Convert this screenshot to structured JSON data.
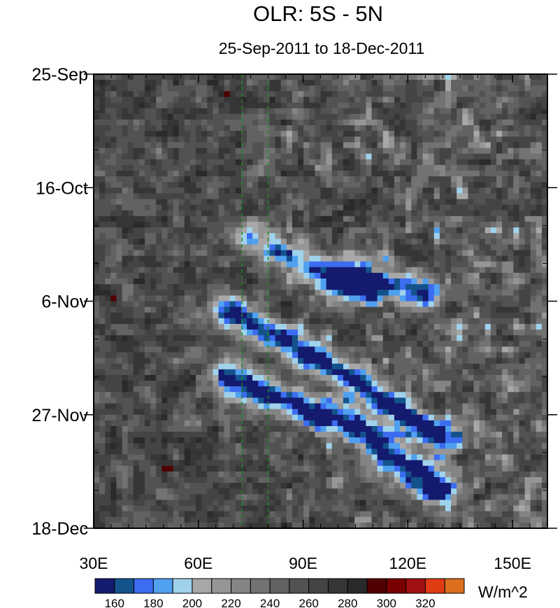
{
  "chart_data": {
    "type": "heatmap",
    "title": "OLR: 5S - 5N",
    "subtitle": "25-Sep-2011 to 18-Dec-2011",
    "xlabel": "",
    "ylabel": "",
    "xlim": [
      30,
      160
    ],
    "x_ticks": [
      {
        "value": 30,
        "label": "30E"
      },
      {
        "value": 60,
        "label": "60E"
      },
      {
        "value": 90,
        "label": "90E"
      },
      {
        "value": 120,
        "label": "120E"
      },
      {
        "value": 150,
        "label": "150E"
      }
    ],
    "y_ticks": [
      {
        "day": 0,
        "label": "25-Sep"
      },
      {
        "day": 21,
        "label": "16-Oct"
      },
      {
        "day": 42,
        "label": "6-Nov"
      },
      {
        "day": 63,
        "label": "27-Nov"
      },
      {
        "day": 84,
        "label": "18-Dec"
      }
    ],
    "ylim_days": [
      0,
      84
    ],
    "reference_lines_lon": [
      72.5,
      80
    ],
    "reference_line_color": "#1e8a1e",
    "colorbar": {
      "units": "W/m^2",
      "levels": [
        150,
        160,
        170,
        180,
        190,
        200,
        210,
        220,
        230,
        240,
        250,
        260,
        270,
        280,
        290,
        300,
        310,
        320,
        330
      ],
      "colors": [
        "#141a6e",
        "#14528c",
        "#3c6cf0",
        "#50a0f0",
        "#a0d2ec",
        "#a8a8a8",
        "#969696",
        "#848484",
        "#727272",
        "#626262",
        "#525252",
        "#444444",
        "#363636",
        "#2a2a2a",
        "#500000",
        "#780000",
        "#a01010",
        "#e03c14",
        "#dc6e1e"
      ],
      "tick_labels": [
        "160",
        "180",
        "200",
        "220",
        "240",
        "260",
        "280",
        "300",
        "320"
      ],
      "tick_values": [
        160,
        180,
        200,
        220,
        240,
        260,
        280,
        300,
        320
      ]
    },
    "features": [
      {
        "type": "convective_band",
        "description": "",
        "path": [
          [
            69,
            44
          ],
          [
            76,
            46
          ],
          [
            84,
            49
          ],
          [
            92,
            52
          ],
          [
            100,
            55
          ],
          [
            108,
            58
          ],
          [
            118,
            63
          ],
          [
            130,
            67
          ]
        ],
        "min_olr": 160
      },
      {
        "type": "convective_band",
        "description": "",
        "path": [
          [
            68,
            56
          ],
          [
            78,
            59
          ],
          [
            88,
            61
          ],
          [
            98,
            63
          ],
          [
            106,
            66
          ],
          [
            112,
            69
          ],
          [
            118,
            72
          ],
          [
            124,
            75
          ],
          [
            130,
            77
          ]
        ],
        "min_olr": 160
      },
      {
        "type": "convective_band",
        "description": "",
        "path": [
          [
            100,
            37
          ],
          [
            112,
            38.5
          ],
          [
            124,
            40
          ]
        ],
        "min_olr": 175
      },
      {
        "type": "convective_band",
        "description": "",
        "path": [
          [
            75,
            30
          ],
          [
            83,
            33
          ],
          [
            91,
            36
          ],
          [
            99,
            38
          ],
          [
            106,
            40
          ]
        ],
        "min_olr": 185
      }
    ]
  }
}
